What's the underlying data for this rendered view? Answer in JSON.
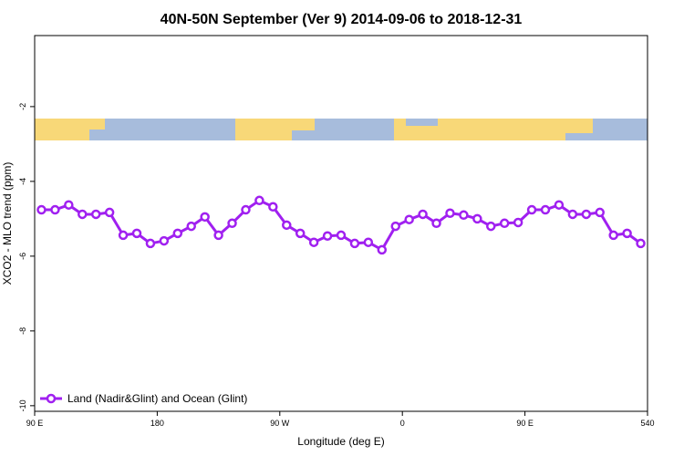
{
  "chart_data": {
    "type": "line",
    "title": "40N-50N September (Ver 9)   2014-09-06 to 2018-12-31",
    "xlabel": "Longitude (deg E)",
    "ylabel": "XCO2 - MLO trend (ppm)",
    "xlim": [
      90,
      540
    ],
    "ylim": [
      -10.15,
      -0.1
    ],
    "xticks": [
      {
        "value": 90,
        "label": "90 E"
      },
      180,
      {
        "value": 270,
        "label": "90 W"
      },
      {
        "value": 360,
        "label": "0"
      },
      {
        "value": 450,
        "label": "90 E"
      },
      540
    ],
    "yticks": [
      -10,
      -8,
      -6,
      -4,
      -2
    ],
    "legend": "bottom-left",
    "x": [
      95,
      105,
      115,
      125,
      135,
      145,
      155,
      165,
      175,
      185,
      195,
      205,
      215,
      225,
      235,
      245,
      255,
      265,
      275,
      285,
      295,
      305,
      315,
      325,
      335,
      345,
      355,
      365,
      375,
      385,
      395,
      405,
      415,
      425,
      435,
      445,
      455,
      465,
      475,
      485,
      495,
      505,
      515,
      525,
      535
    ],
    "series": [
      {
        "name": "Land (Nadir&Glint) and Ocean (Glint)",
        "color": "#a020f0",
        "values": [
          -4.76,
          -4.76,
          -4.63,
          -4.88,
          -4.88,
          -4.83,
          -5.44,
          -5.39,
          -5.66,
          -5.59,
          -5.39,
          -5.2,
          -4.95,
          -5.44,
          -5.12,
          -4.76,
          -4.51,
          -4.68,
          -5.17,
          -5.39,
          -5.63,
          -5.46,
          -5.44,
          -5.66,
          -5.63,
          -5.83,
          -5.2,
          -5.02,
          -4.88,
          -5.12,
          -4.85,
          -4.9,
          -5.0,
          -5.2,
          -5.12,
          -5.1,
          -4.76,
          -4.76,
          -4.63,
          -4.88,
          -4.88,
          -4.83,
          -5.44,
          -5.39,
          -5.66
        ]
      }
    ]
  }
}
